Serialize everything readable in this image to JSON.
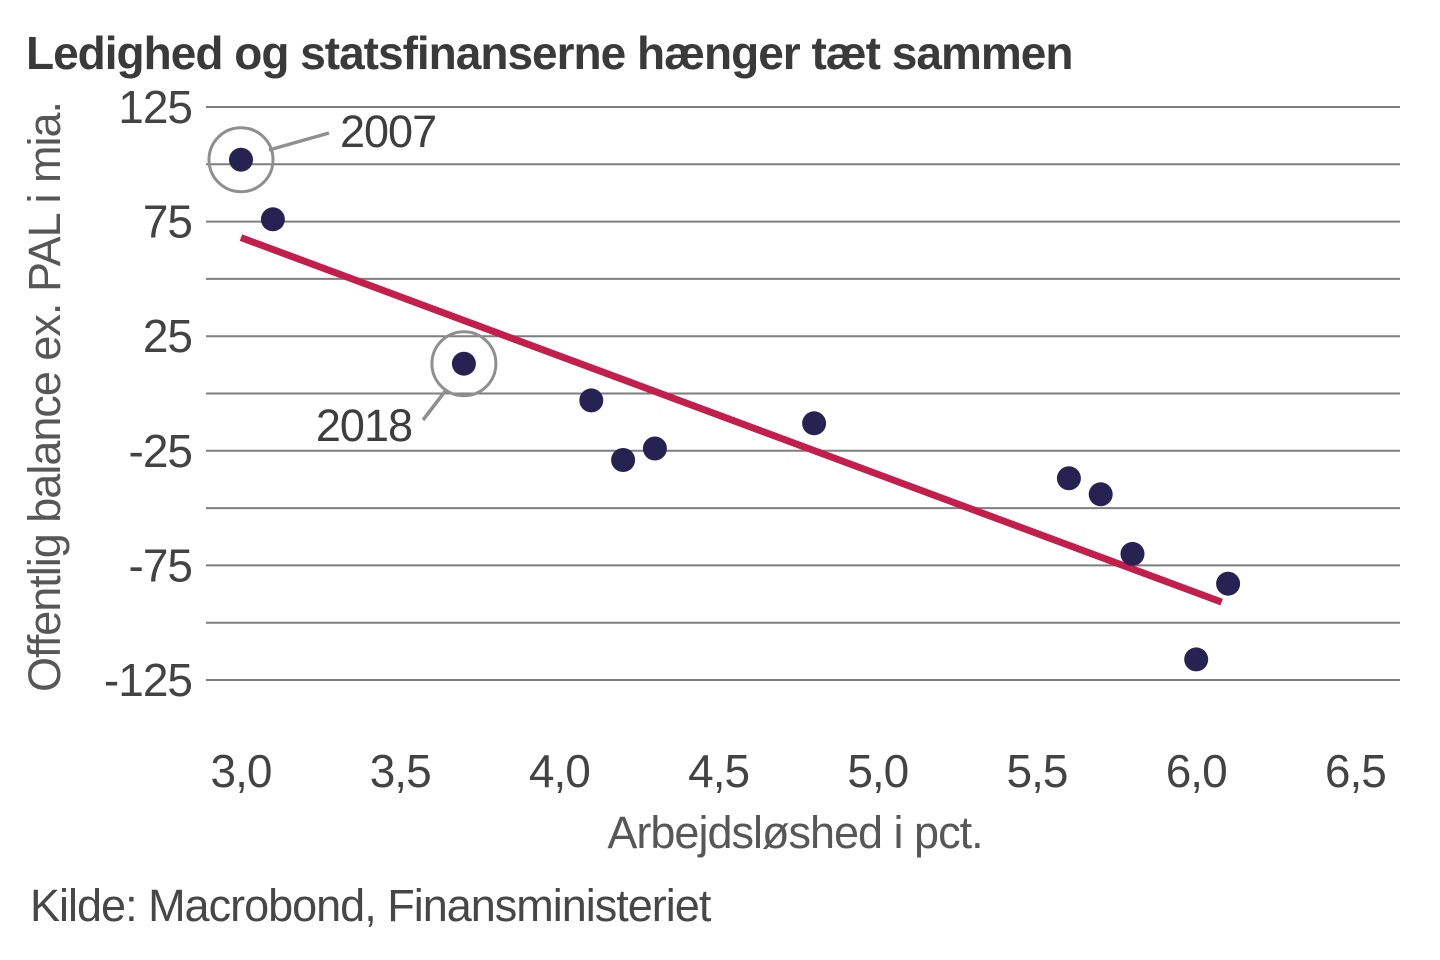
{
  "page": {
    "source": "Kilde: Macrobond, Finansministeriet"
  },
  "chart_data": {
    "type": "scatter",
    "title": "Ledighed og statsfinanserne hænger tæt sammen",
    "xlabel": "Arbejdsløshed i pct.",
    "ylabel": "Offentlig balance ex. PAL i mia.",
    "xlim": [
      2.89,
      6.64
    ],
    "ylim": [
      -125,
      125
    ],
    "grid": "horizontal gridlines only",
    "grid_interval": 25,
    "legend": "none",
    "x_ticks": [
      {
        "value": 3.0,
        "label": "3,0"
      },
      {
        "value": 3.5,
        "label": "3,5"
      },
      {
        "value": 4.0,
        "label": "4,0"
      },
      {
        "value": 4.5,
        "label": "4,5"
      },
      {
        "value": 5.0,
        "label": "5,0"
      },
      {
        "value": 5.5,
        "label": "5,5"
      },
      {
        "value": 6.0,
        "label": "6,0"
      },
      {
        "value": 6.5,
        "label": "6,5"
      }
    ],
    "y_ticks": [
      {
        "value": 125,
        "label": "125"
      },
      {
        "value": 75,
        "label": "75"
      },
      {
        "value": 25,
        "label": "25"
      },
      {
        "value": -25,
        "label": "-25"
      },
      {
        "value": -75,
        "label": "-75"
      },
      {
        "value": -125,
        "label": "-125"
      }
    ],
    "points": [
      {
        "x": 3.0,
        "y": 102,
        "annotation": "2007"
      },
      {
        "x": 3.1,
        "y": 76
      },
      {
        "x": 3.7,
        "y": 13,
        "annotation": "2018"
      },
      {
        "x": 4.1,
        "y": -3
      },
      {
        "x": 4.2,
        "y": -29
      },
      {
        "x": 4.3,
        "y": -24
      },
      {
        "x": 4.8,
        "y": -13
      },
      {
        "x": 5.6,
        "y": -37
      },
      {
        "x": 5.7,
        "y": -44
      },
      {
        "x": 5.8,
        "y": -70
      },
      {
        "x": 6.0,
        "y": -116
      },
      {
        "x": 6.1,
        "y": -83
      }
    ],
    "trendline": {
      "x1": 3.0,
      "y1": 68,
      "x2": 6.08,
      "y2": -91
    },
    "colors": {
      "point": "#272251",
      "trend": "#C41E4C",
      "grid": "#7E7E7E",
      "annotation": "#8F8F8F",
      "title_text": "#3A3A3A",
      "tick_text": "#434343",
      "axis_title_text": "#575757",
      "source_text": "#474747"
    }
  }
}
